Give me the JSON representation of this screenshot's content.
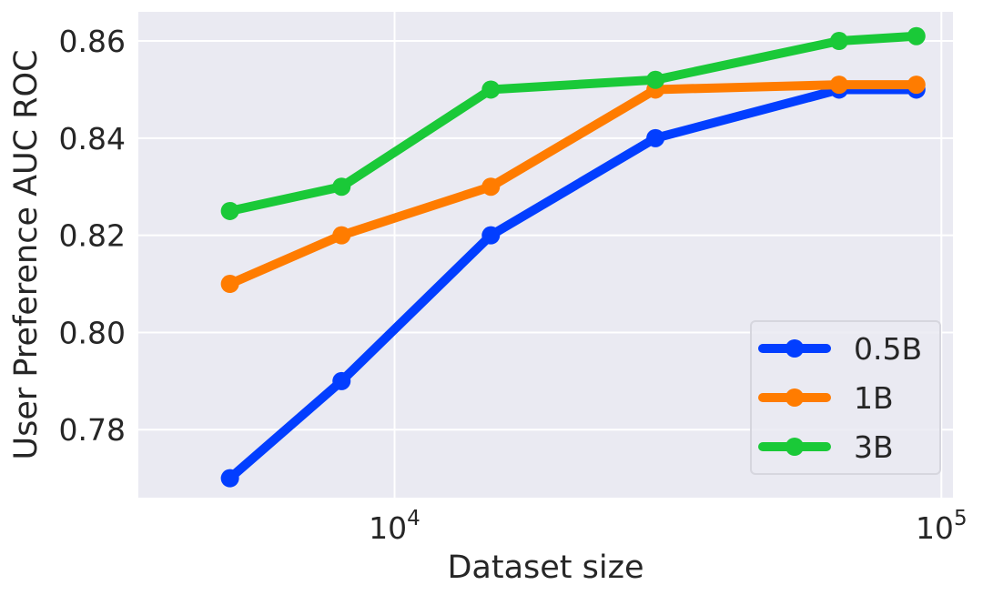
{
  "chart_data": {
    "type": "line",
    "title": "",
    "xlabel": "Dataset size",
    "ylabel": "User Preference AUC ROC",
    "x_scale": "log",
    "xlim": [
      3400,
      105000
    ],
    "ylim": [
      0.766,
      0.866
    ],
    "x_ticks": [
      {
        "value": 10000,
        "base": "10",
        "exp": "4"
      },
      {
        "value": 100000,
        "base": "10",
        "exp": "5"
      }
    ],
    "y_ticks": [
      {
        "value": 0.78,
        "label": "0.78"
      },
      {
        "value": 0.8,
        "label": "0.80"
      },
      {
        "value": 0.82,
        "label": "0.82"
      },
      {
        "value": 0.84,
        "label": "0.84"
      },
      {
        "value": 0.86,
        "label": "0.86"
      }
    ],
    "x": [
      5000,
      8000,
      15000,
      30000,
      65000,
      90000
    ],
    "grid": true,
    "legend_position": "bottom-right",
    "background_color": "#eaeaf2",
    "series": [
      {
        "name": "0.5B",
        "color": "#023eff",
        "values": [
          0.77,
          0.79,
          0.82,
          0.84,
          0.85,
          0.85
        ]
      },
      {
        "name": "1B",
        "color": "#ff7c00",
        "values": [
          0.81,
          0.82,
          0.83,
          0.85,
          0.851,
          0.851
        ]
      },
      {
        "name": "3B",
        "color": "#1ac938",
        "values": [
          0.825,
          0.83,
          0.85,
          0.852,
          0.86,
          0.861
        ]
      }
    ]
  }
}
